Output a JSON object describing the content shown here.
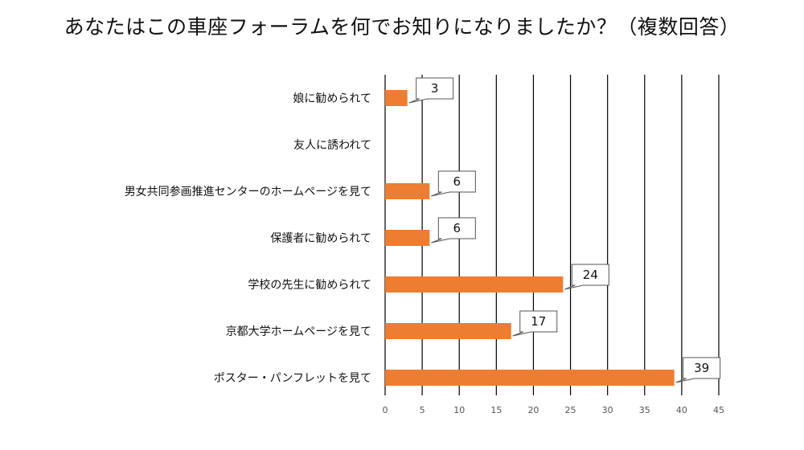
{
  "chart_data": {
    "type": "bar",
    "orientation": "horizontal",
    "title": "あなたはこの車座フォーラムを何でお知りになりましたか？（複数回答）",
    "categories": [
      "娘に勧められて",
      "友人に誘われて",
      "男女共同参画推進センターのホームページを見て",
      "保護者に勧められて",
      "学校の先生に勧められて",
      "京都大学ホームページを見て",
      "ポスター・パンフレットを見て"
    ],
    "values": [
      3,
      0,
      6,
      6,
      24,
      17,
      39
    ],
    "data_labels": [
      "3",
      "",
      "6",
      "6",
      "24",
      "17",
      "39"
    ],
    "xlim": [
      0,
      45
    ],
    "x_ticks": [
      0,
      5,
      10,
      15,
      20,
      25,
      30,
      35,
      40,
      45
    ],
    "grid": "vertical",
    "bar_color": "#ED7D31",
    "gridline_color": "#000000",
    "legend": "none"
  }
}
